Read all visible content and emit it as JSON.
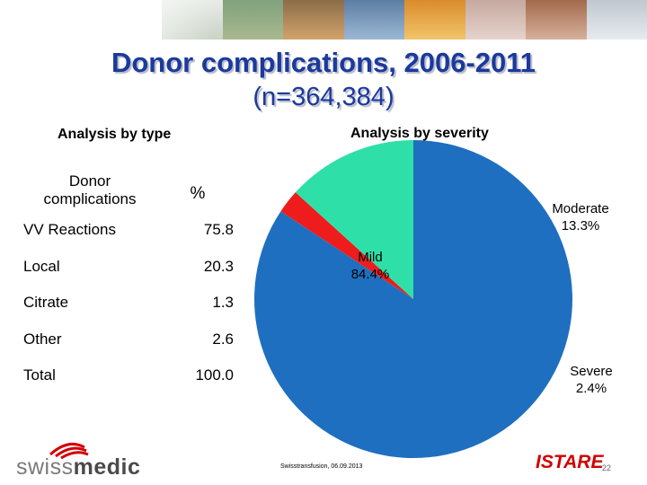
{
  "slide": {
    "title": "Donor complications, 2006-2011",
    "subtitle": "(n=364,384)"
  },
  "table_section": {
    "heading": "Analysis by type",
    "header_name": "Donor complications",
    "header_pct": "%",
    "rows": [
      {
        "name": "VV Reactions",
        "value": "75.8"
      },
      {
        "name": "Local",
        "value": "20.3"
      },
      {
        "name": "Citrate",
        "value": "1.3"
      },
      {
        "name": "Other",
        "value": "2.6"
      },
      {
        "name": "Total",
        "value": "100.0"
      }
    ]
  },
  "pie_section": {
    "heading": "Analysis by severity"
  },
  "chart_data": {
    "type": "pie",
    "slices": [
      {
        "label": "Mild",
        "value": 84.4,
        "display": "84.4%",
        "color": "#1f6fc0"
      },
      {
        "label": "Moderate",
        "value": 13.3,
        "display": "13.3%",
        "color": "#2ee0a8"
      },
      {
        "label": "Severe",
        "value": 2.4,
        "display": "2.4%",
        "color": "#ee1c1c"
      }
    ]
  },
  "footer": {
    "logo_text_light": "swiss",
    "logo_text_bold": "medic",
    "note": "Swisstransfusion, 06.09.2013",
    "brand": "ISTARE",
    "page": "22"
  }
}
